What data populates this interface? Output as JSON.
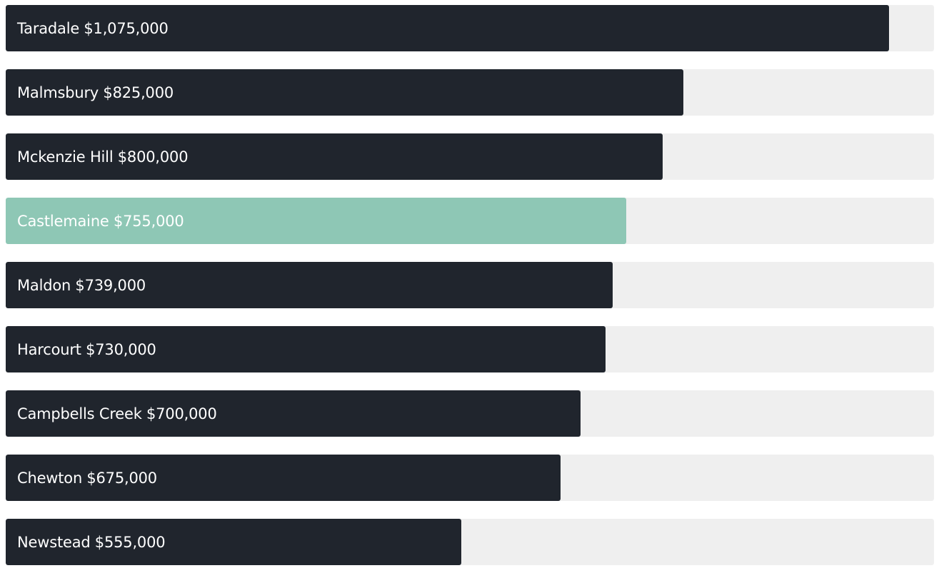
{
  "chart_data": {
    "type": "bar",
    "orientation": "horizontal",
    "xlim": [
      0,
      1130000
    ],
    "grid": false,
    "legend": "none",
    "bar_color": "#20252d",
    "highlight_color": "#8ec7b5",
    "track_color": "#efefef",
    "label_color": "#ffffff",
    "categories": [
      "Taradale",
      "Malmsbury",
      "Mckenzie Hill",
      "Castlemaine",
      "Maldon",
      "Harcourt",
      "Campbells Creek",
      "Chewton",
      "Newstead"
    ],
    "values": [
      1075000,
      825000,
      800000,
      755000,
      739000,
      730000,
      700000,
      675000,
      555000
    ],
    "value_labels": [
      "$1,075,000",
      "$825,000",
      "$800,000",
      "$755,000",
      "$739,000",
      "$730,000",
      "$700,000",
      "$675,000",
      "$555,000"
    ],
    "highlighted": [
      "Castlemaine"
    ]
  }
}
